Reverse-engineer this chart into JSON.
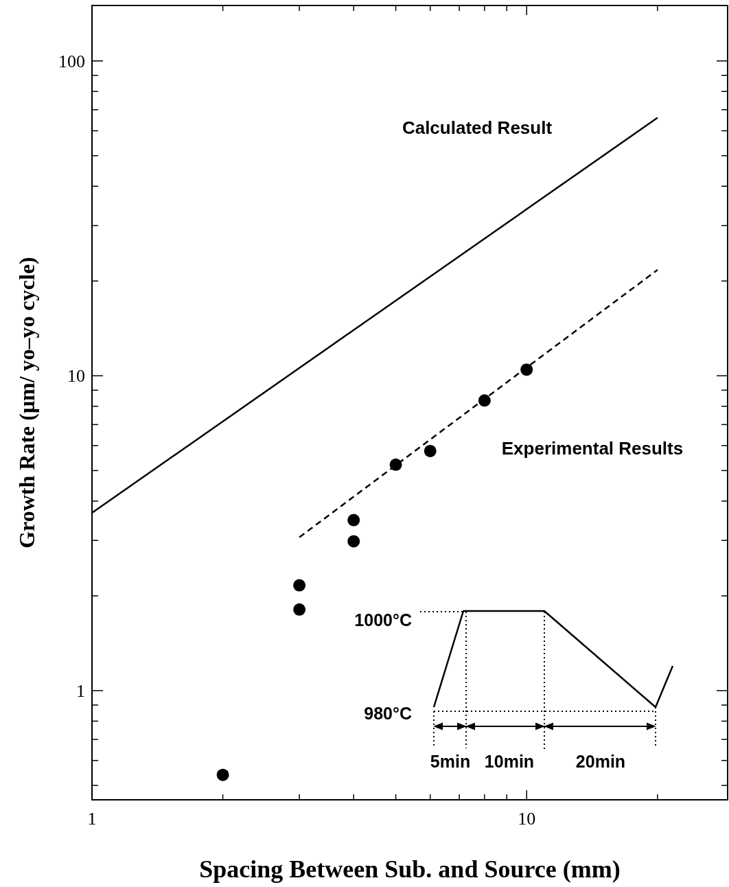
{
  "chart_data": {
    "type": "scatter",
    "xlabel": "Spacing Between Sub. and Source (mm)",
    "ylabel": "Growth Rate (μm/ yo–yo cycle)",
    "log": "xy",
    "xlim": [
      1,
      29
    ],
    "ylim": [
      0.45,
      150
    ],
    "xticks": [
      1,
      {
        "value": 2,
        "label": null
      },
      {
        "value": 3,
        "label": null
      },
      {
        "value": 4,
        "label": null
      },
      {
        "value": 5,
        "label": null
      },
      {
        "value": 6,
        "label": null
      },
      {
        "value": 7,
        "label": null
      },
      {
        "value": 8,
        "label": null
      },
      {
        "value": 9,
        "label": null
      },
      10,
      {
        "value": 20,
        "label": null
      }
    ],
    "yticks": [
      {
        "value": 0.5,
        "label": null
      },
      {
        "value": 0.6,
        "label": null
      },
      {
        "value": 0.7,
        "label": null
      },
      {
        "value": 0.8,
        "label": null
      },
      {
        "value": 0.9,
        "label": null
      },
      1,
      {
        "value": 2,
        "label": null
      },
      {
        "value": 3,
        "label": null
      },
      {
        "value": 4,
        "label": null
      },
      {
        "value": 5,
        "label": null
      },
      {
        "value": 6,
        "label": null
      },
      {
        "value": 7,
        "label": null
      },
      {
        "value": 8,
        "label": null
      },
      {
        "value": 9,
        "label": null
      },
      10,
      {
        "value": 20,
        "label": null
      },
      {
        "value": 30,
        "label": null
      },
      {
        "value": 40,
        "label": null
      },
      {
        "value": 50,
        "label": null
      },
      {
        "value": 60,
        "label": null
      },
      {
        "value": 70,
        "label": null
      },
      {
        "value": 80,
        "label": null
      },
      {
        "value": 90,
        "label": null
      },
      100
    ],
    "series": [
      {
        "name": "Calculated Result",
        "type": "line",
        "color": "#000000",
        "line_style": "solid",
        "x": [
          1,
          20
        ],
        "values": [
          3.67,
          66
        ]
      },
      {
        "type": "line",
        "color": "#000000",
        "line_style": "dashed",
        "x": [
          3,
          20
        ],
        "values": [
          3.07,
          21.7
        ]
      },
      {
        "name": "Experimental Results",
        "color": "#000000",
        "marker": "circle",
        "x": [
          2,
          3,
          3,
          4,
          4,
          5,
          6,
          8,
          10
        ],
        "values": [
          0.54,
          2.16,
          1.81,
          3.48,
          2.98,
          5.22,
          5.77,
          8.35,
          10.46
        ]
      }
    ],
    "annotations": [
      "1000°C",
      "980°C",
      "5min",
      "10min",
      "20min"
    ]
  }
}
